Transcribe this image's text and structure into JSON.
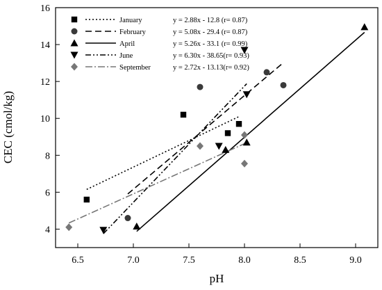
{
  "chart_data": {
    "type": "scatter",
    "xlabel": "pH",
    "ylabel": "CEC (cmol/kg)",
    "xlim": [
      6.3,
      9.2
    ],
    "ylim": [
      3,
      16
    ],
    "x_ticks": [
      6.5,
      7.0,
      7.5,
      8.0,
      8.5,
      9.0
    ],
    "x_tick_labels": [
      "6.5",
      "7.0",
      "7.5",
      "8.0",
      "8.5",
      "9.0"
    ],
    "y_ticks": [
      4,
      6,
      8,
      10,
      12,
      14,
      16
    ],
    "y_tick_labels": [
      "4",
      "6",
      "8",
      "10",
      "12",
      "14",
      "16"
    ],
    "grid": false,
    "legend_position": "top-left",
    "series": [
      {
        "name": "January",
        "marker": "square",
        "color": "#000000",
        "equation": "y = 2.88x - 12.8 (r= 0.87)",
        "points": [
          [
            6.58,
            5.6
          ],
          [
            7.45,
            10.2
          ],
          [
            7.85,
            9.2
          ],
          [
            7.95,
            9.7
          ]
        ],
        "fit": {
          "slope": 2.88,
          "intercept": -12.8,
          "x_range": [
            6.58,
            7.95
          ],
          "line_style": "dotted"
        }
      },
      {
        "name": "February",
        "marker": "circle",
        "color": "#3a3a3a",
        "equation": "y = 5.08x - 29.4 (r= 0.87)",
        "points": [
          [
            6.95,
            4.6
          ],
          [
            7.6,
            11.7
          ],
          [
            8.2,
            12.5
          ],
          [
            8.35,
            11.8
          ]
        ],
        "fit": {
          "slope": 5.08,
          "intercept": -29.4,
          "x_range": [
            6.95,
            8.35
          ],
          "line_style": "dashed"
        }
      },
      {
        "name": "April",
        "marker": "triangle-up",
        "color": "#000000",
        "equation": "y = 5.26x - 33.1 (r= 0.99)",
        "points": [
          [
            7.03,
            4.15
          ],
          [
            7.83,
            8.3
          ],
          [
            8.02,
            8.7
          ],
          [
            9.08,
            14.95
          ]
        ],
        "fit": {
          "slope": 5.26,
          "intercept": -33.1,
          "x_range": [
            7.03,
            9.08
          ],
          "line_style": "solid"
        }
      },
      {
        "name": "June",
        "marker": "triangle-down",
        "color": "#000000",
        "equation": "y = 6.30x - 38.65(r= 0.93)",
        "points": [
          [
            6.73,
            3.95
          ],
          [
            7.77,
            8.5
          ],
          [
            8.0,
            13.7
          ],
          [
            8.02,
            11.3
          ]
        ],
        "fit": {
          "slope": 6.3,
          "intercept": -38.65,
          "x_range": [
            6.73,
            8.02
          ],
          "line_style": "dash-dot-dot"
        }
      },
      {
        "name": "September",
        "marker": "diamond",
        "color": "#777777",
        "equation": "y = 2.72x - 13.13(r= 0.92)",
        "points": [
          [
            6.42,
            4.1
          ],
          [
            7.6,
            8.5
          ],
          [
            8.0,
            9.1
          ],
          [
            8.0,
            7.55
          ]
        ],
        "fit": {
          "slope": 2.72,
          "intercept": -13.13,
          "x_range": [
            6.42,
            8.0
          ],
          "line_style": "dash-dot"
        }
      }
    ]
  }
}
